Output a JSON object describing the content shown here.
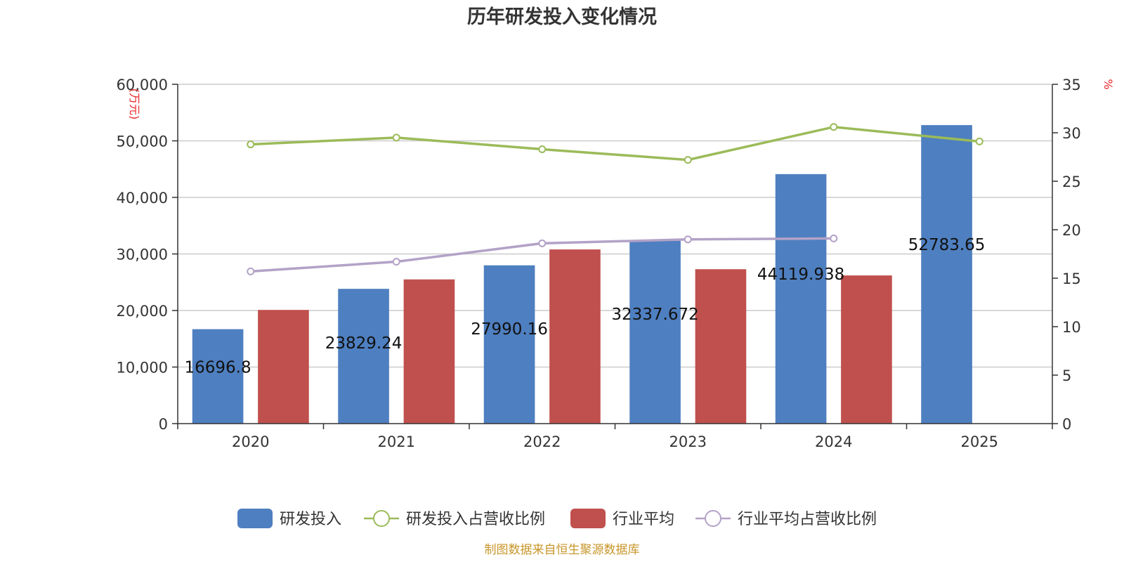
{
  "chart_data": {
    "type": "bar",
    "title": "历年研发投入变化情况",
    "categories": [
      "2020",
      "2021",
      "2022",
      "2023",
      "2024",
      "2025"
    ],
    "left_axis": {
      "unit": "(万元)",
      "ylim": [
        0,
        60000
      ],
      "ticks": [
        "0",
        "10,000",
        "20,000",
        "30,000",
        "40,000",
        "50,000",
        "60,000"
      ]
    },
    "right_axis": {
      "unit": "%",
      "ylim": [
        0,
        35
      ],
      "ticks": [
        "0",
        "5",
        "10",
        "15",
        "20",
        "25",
        "30",
        "35"
      ]
    },
    "grid": true,
    "legend_position": "bottom",
    "series": [
      {
        "name": "研发投入",
        "kind": "bar",
        "axis": "left",
        "color": "#4e7fc0",
        "values": [
          16696.8,
          23829.24,
          27990.16,
          32337.672,
          44119.938,
          52783.65
        ],
        "labels": [
          "16696.8",
          "23829.24",
          "27990.16",
          "32337.672",
          "44119.938",
          "52783.65"
        ]
      },
      {
        "name": "研发投入占营收比例",
        "kind": "line",
        "axis": "right",
        "color": "#9bbb59",
        "values": [
          28.8,
          29.5,
          28.3,
          27.2,
          30.6,
          29.1
        ]
      },
      {
        "name": "行业平均",
        "kind": "bar",
        "axis": "left",
        "color": "#c0504d",
        "values": [
          20100,
          25500,
          30800,
          27300,
          26200,
          null
        ]
      },
      {
        "name": "行业平均占营收比例",
        "kind": "line",
        "axis": "right",
        "color": "#b3a2c7",
        "values": [
          15.7,
          16.7,
          18.6,
          19.0,
          19.1,
          null
        ]
      }
    ]
  },
  "source": "制图数据来自恒生聚源数据库"
}
